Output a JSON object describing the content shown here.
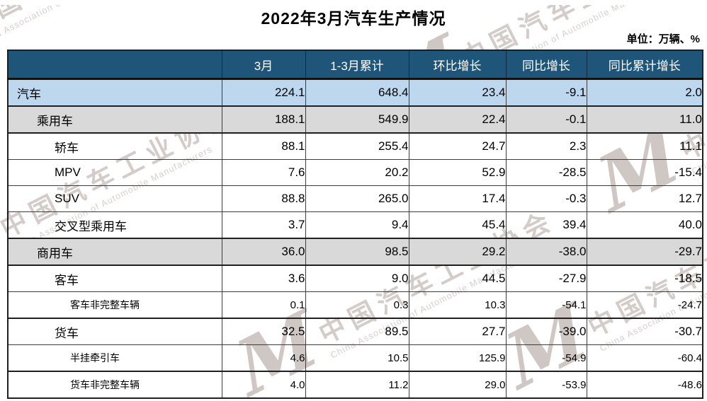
{
  "title": "2022年3月汽车生产情况",
  "unit_label": "单位：万辆、%",
  "watermark": {
    "logo_text": "M",
    "cn": "中国汽车工业协会",
    "en": "China Association of Automobile Manufacturers"
  },
  "colors": {
    "header_bg": "#1F5579",
    "header_text": "#FFFFFF",
    "row_total_blue": "#BDD7EE",
    "row_group_gray": "#D9D9D9",
    "border_dark": "#1F1F1F",
    "watermark_gray": "#D3CCC9"
  },
  "chart_data": {
    "type": "table",
    "title": "2022年3月汽车生产情况",
    "unit": "万辆、%",
    "columns": [
      "",
      "3月",
      "1-3月累计",
      "环比增长",
      "同比增长",
      "同比累计增长"
    ],
    "rows": [
      {
        "label": "汽车",
        "level": 0,
        "emphasis": "blue",
        "small": false,
        "values": [
          224.1,
          648.4,
          23.4,
          -9.1,
          2.0
        ]
      },
      {
        "label": "乘用车",
        "level": 1,
        "emphasis": "gray",
        "small": false,
        "values": [
          188.1,
          549.9,
          22.4,
          -0.1,
          11.0
        ]
      },
      {
        "label": "轿车",
        "level": 2,
        "emphasis": "",
        "small": false,
        "values": [
          88.1,
          255.4,
          24.7,
          2.3,
          11.1
        ]
      },
      {
        "label": "MPV",
        "level": 2,
        "emphasis": "",
        "small": false,
        "values": [
          7.6,
          20.2,
          52.9,
          -28.5,
          -15.4
        ]
      },
      {
        "label": "SUV",
        "level": 2,
        "emphasis": "",
        "small": false,
        "values": [
          88.8,
          265.0,
          17.4,
          -0.3,
          12.7
        ]
      },
      {
        "label": "交叉型乘用车",
        "level": 2,
        "emphasis": "",
        "small": false,
        "values": [
          3.7,
          9.4,
          45.4,
          39.4,
          40.0
        ]
      },
      {
        "label": "商用车",
        "level": 1,
        "emphasis": "gray",
        "small": false,
        "values": [
          36.0,
          98.5,
          29.2,
          -38.0,
          -29.7
        ]
      },
      {
        "label": "客车",
        "level": 2,
        "emphasis": "",
        "small": false,
        "values": [
          3.6,
          9.0,
          44.5,
          -27.9,
          -18.5
        ]
      },
      {
        "label": "客车非完整车辆",
        "level": 3,
        "emphasis": "",
        "small": true,
        "values": [
          0.1,
          0.3,
          10.3,
          -54.1,
          -24.7
        ]
      },
      {
        "label": "货车",
        "level": 2,
        "emphasis": "",
        "small": false,
        "values": [
          32.5,
          89.5,
          27.7,
          -39.0,
          -30.7
        ]
      },
      {
        "label": "半挂牵引车",
        "level": 3,
        "emphasis": "",
        "small": true,
        "values": [
          4.6,
          10.5,
          125.9,
          -54.9,
          -60.4
        ]
      },
      {
        "label": "货车非完整车辆",
        "level": 3,
        "emphasis": "",
        "small": true,
        "values": [
          4.0,
          11.2,
          29.0,
          -53.9,
          -48.6
        ]
      }
    ]
  }
}
